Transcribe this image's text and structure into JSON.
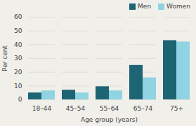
{
  "chart_data": {
    "type": "bar",
    "categories": [
      "18–44",
      "45–54",
      "55–64",
      "65–74",
      "75+"
    ],
    "series": [
      {
        "name": "Men",
        "color": "#1d6475",
        "values": [
          5,
          7,
          9.5,
          25,
          43
        ]
      },
      {
        "name": "Women",
        "color": "#90d4e3",
        "values": [
          6.5,
          5,
          6.5,
          16,
          42
        ]
      }
    ],
    "xlabel": "Age group (years)",
    "ylabel": "Per cent",
    "ylim": [
      0,
      60
    ],
    "yticks": [
      0,
      10,
      20,
      30,
      40,
      50,
      60
    ],
    "grid": true,
    "legend": "upper right"
  }
}
